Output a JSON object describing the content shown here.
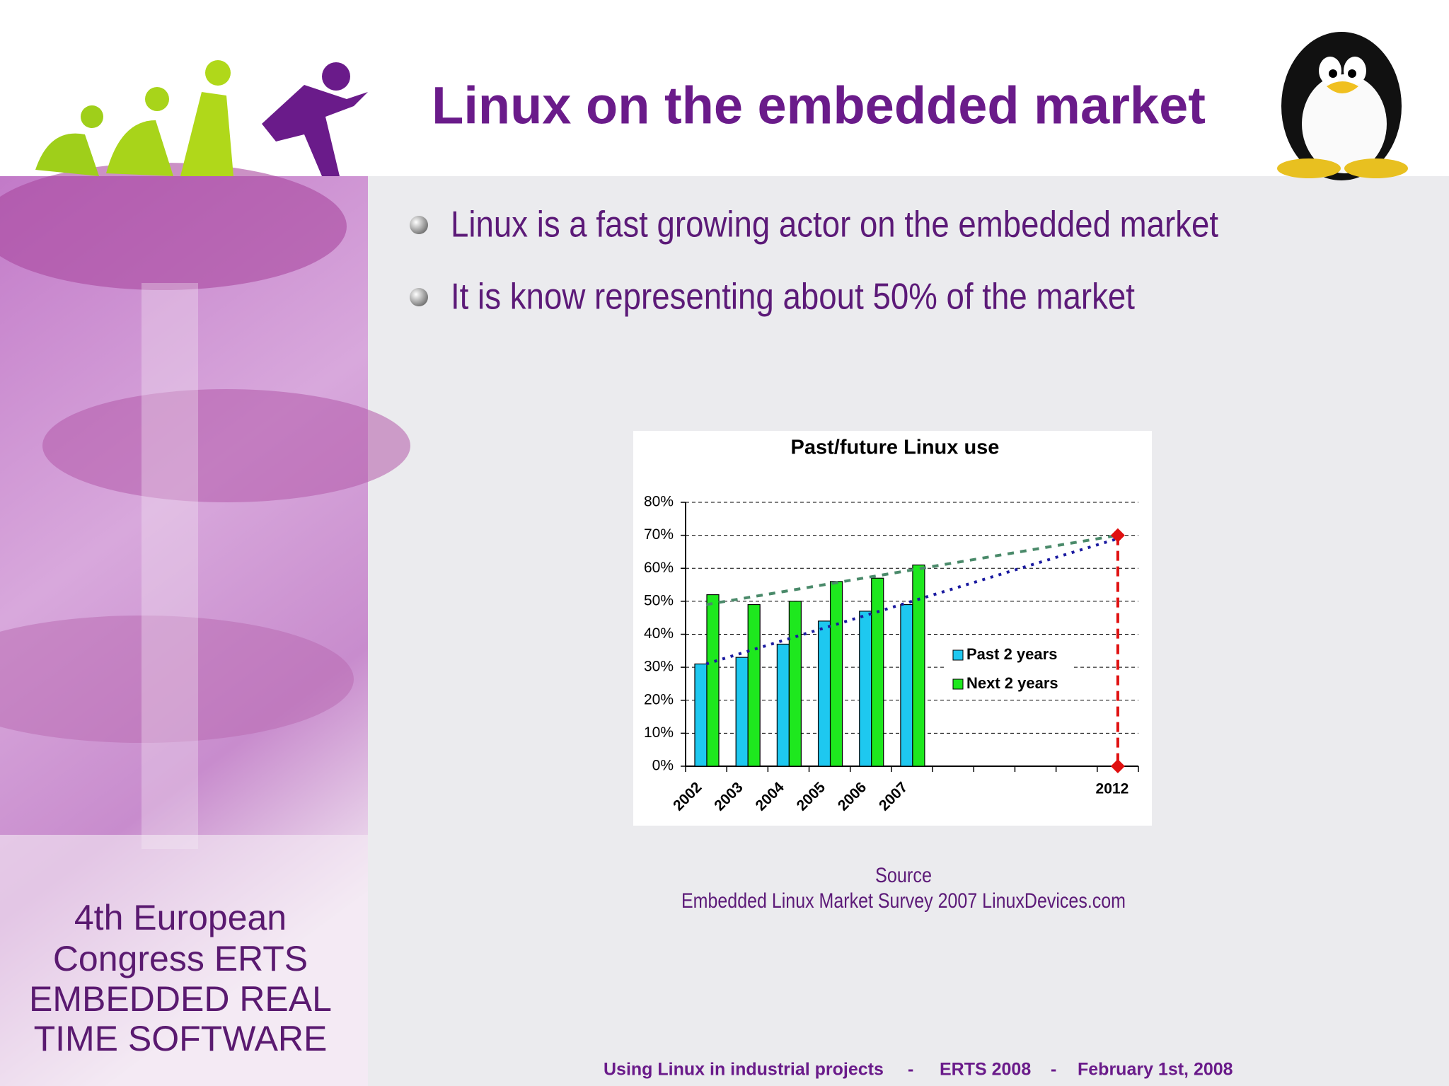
{
  "slide": {
    "title": "Linux on the embedded market",
    "bullets": [
      "Linux is a fast growing actor on the embedded market",
      "It is know representing about 50% of the market"
    ],
    "source": [
      "Source",
      "Embedded Linux Market Survey 2007 LinuxDevices.com"
    ],
    "sidebar": [
      "4th European",
      "Congress ERTS",
      "EMBEDDED REAL",
      "TIME SOFTWARE"
    ],
    "footer": {
      "items": [
        "Using Linux in industrial projects",
        "ERTS 2008",
        "February 1st, 2008"
      ],
      "separator": "-"
    }
  },
  "chart_data": {
    "type": "bar",
    "title": "Past/future Linux use",
    "categories": [
      "2002",
      "2003",
      "2004",
      "2005",
      "2006",
      "2007",
      null,
      null,
      null,
      null,
      "2012"
    ],
    "series": [
      {
        "name": "Past 2 years",
        "color": "#1ec8f0",
        "values": [
          31,
          33,
          37,
          44,
          47,
          49,
          null,
          null,
          null,
          null,
          null
        ]
      },
      {
        "name": "Next 2 years",
        "color": "#1ee81e",
        "values": [
          52,
          49,
          50,
          56,
          57,
          61,
          null,
          null,
          null,
          null,
          null
        ]
      }
    ],
    "trends": [
      {
        "color": "#1a1aa0",
        "from": 31,
        "to": 69
      },
      {
        "color": "#4a8a6a",
        "from": 49,
        "to": 70
      }
    ],
    "projection": {
      "color": "#e01010",
      "values": [
        70,
        0
      ]
    },
    "ylim": [
      0,
      80
    ],
    "yticks": [
      {
        "value": 0,
        "label": "0%"
      },
      {
        "value": 10,
        "label": "10%"
      },
      {
        "value": 20,
        "label": "20%"
      },
      {
        "value": 30,
        "label": "30%"
      },
      {
        "value": 40,
        "label": "40%"
      },
      {
        "value": 50,
        "label": "50%"
      },
      {
        "value": 60,
        "label": "60%"
      },
      {
        "value": 70,
        "label": "70%"
      },
      {
        "value": 80,
        "label": "80%"
      }
    ],
    "grid": true
  }
}
